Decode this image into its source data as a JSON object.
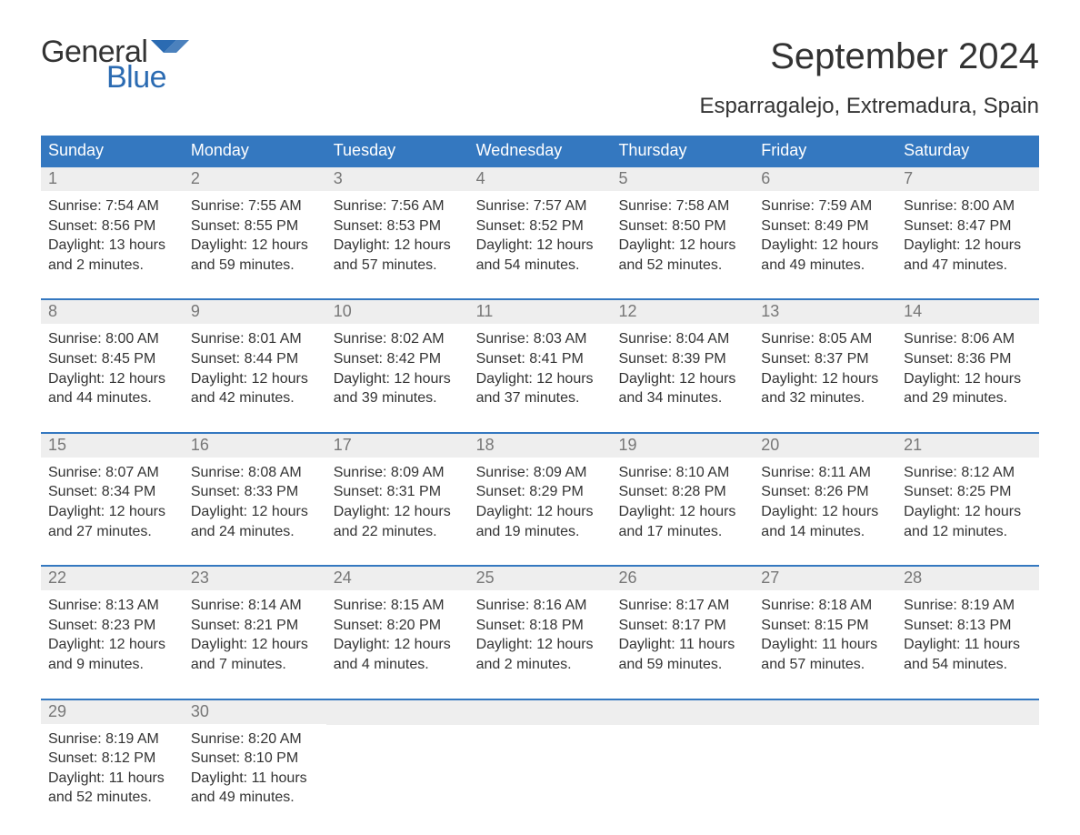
{
  "logo": {
    "word1": "General",
    "word2": "Blue",
    "word1_color": "#333333",
    "word2_color": "#2b6bb2",
    "flag_color": "#2b6bb2"
  },
  "title": "September 2024",
  "location": "Esparragalejo, Extremadura, Spain",
  "colors": {
    "header_bg": "#3478c0",
    "header_text": "#ffffff",
    "day_number_bg": "#eeeeee",
    "day_number_text": "#777777",
    "body_text": "#333333",
    "row_border": "#3478c0",
    "page_bg": "#ffffff"
  },
  "fonts": {
    "title_size_pt": 30,
    "location_size_pt": 18,
    "weekday_size_pt": 14,
    "daynum_size_pt": 14,
    "body_size_pt": 12
  },
  "weekdays": [
    "Sunday",
    "Monday",
    "Tuesday",
    "Wednesday",
    "Thursday",
    "Friday",
    "Saturday"
  ],
  "labels": {
    "sunrise": "Sunrise:",
    "sunset": "Sunset:",
    "daylight_prefix": "Daylight:",
    "hours_word": "hours",
    "and_word": "and",
    "minutes_word": "minutes."
  },
  "weeks": [
    [
      {
        "day": "1",
        "sunrise": "7:54 AM",
        "sunset": "8:56 PM",
        "dl_h": "13",
        "dl_m": "2"
      },
      {
        "day": "2",
        "sunrise": "7:55 AM",
        "sunset": "8:55 PM",
        "dl_h": "12",
        "dl_m": "59"
      },
      {
        "day": "3",
        "sunrise": "7:56 AM",
        "sunset": "8:53 PM",
        "dl_h": "12",
        "dl_m": "57"
      },
      {
        "day": "4",
        "sunrise": "7:57 AM",
        "sunset": "8:52 PM",
        "dl_h": "12",
        "dl_m": "54"
      },
      {
        "day": "5",
        "sunrise": "7:58 AM",
        "sunset": "8:50 PM",
        "dl_h": "12",
        "dl_m": "52"
      },
      {
        "day": "6",
        "sunrise": "7:59 AM",
        "sunset": "8:49 PM",
        "dl_h": "12",
        "dl_m": "49"
      },
      {
        "day": "7",
        "sunrise": "8:00 AM",
        "sunset": "8:47 PM",
        "dl_h": "12",
        "dl_m": "47"
      }
    ],
    [
      {
        "day": "8",
        "sunrise": "8:00 AM",
        "sunset": "8:45 PM",
        "dl_h": "12",
        "dl_m": "44"
      },
      {
        "day": "9",
        "sunrise": "8:01 AM",
        "sunset": "8:44 PM",
        "dl_h": "12",
        "dl_m": "42"
      },
      {
        "day": "10",
        "sunrise": "8:02 AM",
        "sunset": "8:42 PM",
        "dl_h": "12",
        "dl_m": "39"
      },
      {
        "day": "11",
        "sunrise": "8:03 AM",
        "sunset": "8:41 PM",
        "dl_h": "12",
        "dl_m": "37"
      },
      {
        "day": "12",
        "sunrise": "8:04 AM",
        "sunset": "8:39 PM",
        "dl_h": "12",
        "dl_m": "34"
      },
      {
        "day": "13",
        "sunrise": "8:05 AM",
        "sunset": "8:37 PM",
        "dl_h": "12",
        "dl_m": "32"
      },
      {
        "day": "14",
        "sunrise": "8:06 AM",
        "sunset": "8:36 PM",
        "dl_h": "12",
        "dl_m": "29"
      }
    ],
    [
      {
        "day": "15",
        "sunrise": "8:07 AM",
        "sunset": "8:34 PM",
        "dl_h": "12",
        "dl_m": "27"
      },
      {
        "day": "16",
        "sunrise": "8:08 AM",
        "sunset": "8:33 PM",
        "dl_h": "12",
        "dl_m": "24"
      },
      {
        "day": "17",
        "sunrise": "8:09 AM",
        "sunset": "8:31 PM",
        "dl_h": "12",
        "dl_m": "22"
      },
      {
        "day": "18",
        "sunrise": "8:09 AM",
        "sunset": "8:29 PM",
        "dl_h": "12",
        "dl_m": "19"
      },
      {
        "day": "19",
        "sunrise": "8:10 AM",
        "sunset": "8:28 PM",
        "dl_h": "12",
        "dl_m": "17"
      },
      {
        "day": "20",
        "sunrise": "8:11 AM",
        "sunset": "8:26 PM",
        "dl_h": "12",
        "dl_m": "14"
      },
      {
        "day": "21",
        "sunrise": "8:12 AM",
        "sunset": "8:25 PM",
        "dl_h": "12",
        "dl_m": "12"
      }
    ],
    [
      {
        "day": "22",
        "sunrise": "8:13 AM",
        "sunset": "8:23 PM",
        "dl_h": "12",
        "dl_m": "9"
      },
      {
        "day": "23",
        "sunrise": "8:14 AM",
        "sunset": "8:21 PM",
        "dl_h": "12",
        "dl_m": "7"
      },
      {
        "day": "24",
        "sunrise": "8:15 AM",
        "sunset": "8:20 PM",
        "dl_h": "12",
        "dl_m": "4"
      },
      {
        "day": "25",
        "sunrise": "8:16 AM",
        "sunset": "8:18 PM",
        "dl_h": "12",
        "dl_m": "2"
      },
      {
        "day": "26",
        "sunrise": "8:17 AM",
        "sunset": "8:17 PM",
        "dl_h": "11",
        "dl_m": "59"
      },
      {
        "day": "27",
        "sunrise": "8:18 AM",
        "sunset": "8:15 PM",
        "dl_h": "11",
        "dl_m": "57"
      },
      {
        "day": "28",
        "sunrise": "8:19 AM",
        "sunset": "8:13 PM",
        "dl_h": "11",
        "dl_m": "54"
      }
    ],
    [
      {
        "day": "29",
        "sunrise": "8:19 AM",
        "sunset": "8:12 PM",
        "dl_h": "11",
        "dl_m": "52"
      },
      {
        "day": "30",
        "sunrise": "8:20 AM",
        "sunset": "8:10 PM",
        "dl_h": "11",
        "dl_m": "49"
      },
      null,
      null,
      null,
      null,
      null
    ]
  ]
}
